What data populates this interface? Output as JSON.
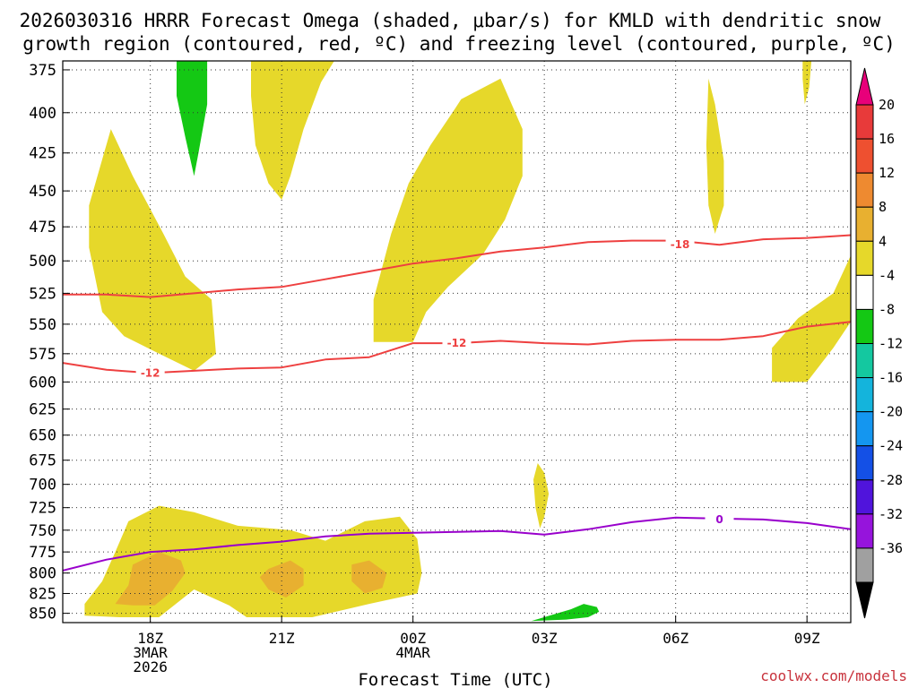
{
  "title_line1": "2026030316 HRRR Forecast Omega (shaded, μbar/s) for KMLD with dendritic snow",
  "title_line2": "growth region (contoured, red, ºC) and freezing level (contoured, purple, ºC)",
  "xlabel": "Forecast Time (UTC)",
  "credit": "coolwx.com/models",
  "colors": {
    "credit": "#c8323c",
    "red_contour": "#ee4040",
    "purple_contour": "#9900cc",
    "ground": "#a0522d"
  },
  "chart_data": {
    "type": "time-height cross section",
    "x_unit": "hours since 2026-03-03 16Z",
    "xlim": [
      0,
      18
    ],
    "ylim_hPa": [
      862,
      370
    ],
    "yticks": [
      375,
      400,
      425,
      450,
      475,
      500,
      525,
      550,
      575,
      600,
      625,
      650,
      675,
      700,
      725,
      750,
      775,
      800,
      825,
      850
    ],
    "xticks": [
      {
        "x": 2,
        "lines": [
          "18Z",
          "3MAR",
          "2026"
        ]
      },
      {
        "x": 5,
        "lines": [
          "21Z"
        ]
      },
      {
        "x": 8,
        "lines": [
          "00Z",
          "4MAR"
        ]
      },
      {
        "x": 11,
        "lines": [
          "03Z"
        ]
      },
      {
        "x": 14,
        "lines": [
          "06Z"
        ]
      },
      {
        "x": 17,
        "lines": [
          "09Z"
        ]
      }
    ],
    "colorbar": {
      "labels": [
        20,
        16,
        12,
        8,
        4,
        -4,
        -8,
        -12,
        -16,
        -20,
        -24,
        -28,
        -32,
        -36
      ],
      "bins": [
        {
          "color": "#e8007a"
        },
        {
          "color": "#e83a3a"
        },
        {
          "color": "#ee5030"
        },
        {
          "color": "#ee8a30"
        },
        {
          "color": "#e8b030"
        },
        {
          "color": "#e6d82a"
        },
        {
          "color": "#ffffff"
        },
        {
          "color": "#14c814"
        },
        {
          "color": "#14c8a0"
        },
        {
          "color": "#14b4dc"
        },
        {
          "color": "#1496f0"
        },
        {
          "color": "#1450e6"
        },
        {
          "color": "#5014dc"
        },
        {
          "color": "#9614dc"
        },
        {
          "color": "#a0a0a0"
        },
        {
          "color": "#000000"
        }
      ]
    },
    "shaded_regions": [
      {
        "level": "4 to 8",
        "color": "#e6d82a",
        "points": [
          [
            1.1,
            410
          ],
          [
            1.6,
            440
          ],
          [
            2.3,
            480
          ],
          [
            2.8,
            512
          ],
          [
            3.4,
            530
          ],
          [
            3.5,
            575
          ],
          [
            3.0,
            590
          ],
          [
            2.2,
            575
          ],
          [
            1.4,
            560
          ],
          [
            0.9,
            540
          ],
          [
            0.6,
            490
          ],
          [
            0.6,
            460
          ]
        ]
      },
      {
        "level": "4 to 8",
        "color": "#e6d82a",
        "points": [
          [
            4.3,
            370
          ],
          [
            6.2,
            370
          ],
          [
            5.9,
            382
          ],
          [
            5.5,
            410
          ],
          [
            5.2,
            440
          ],
          [
            5.0,
            456
          ],
          [
            4.7,
            445
          ],
          [
            4.4,
            420
          ],
          [
            4.3,
            390
          ]
        ]
      },
      {
        "level": "4 to 8",
        "color": "#e6d82a",
        "points": [
          [
            9.1,
            392
          ],
          [
            10.0,
            380
          ],
          [
            10.5,
            410
          ],
          [
            10.5,
            440
          ],
          [
            10.1,
            470
          ],
          [
            9.6,
            495
          ],
          [
            8.8,
            520
          ],
          [
            8.3,
            540
          ],
          [
            8.0,
            565
          ],
          [
            7.1,
            565
          ],
          [
            7.1,
            530
          ],
          [
            7.5,
            480
          ],
          [
            7.9,
            445
          ],
          [
            8.4,
            420
          ],
          [
            8.9,
            400
          ]
        ]
      },
      {
        "level": "4 to 8",
        "color": "#e6d82a",
        "points": [
          [
            14.75,
            380
          ],
          [
            14.9,
            395
          ],
          [
            15.1,
            430
          ],
          [
            15.1,
            460
          ],
          [
            14.9,
            480
          ],
          [
            14.75,
            460
          ],
          [
            14.7,
            420
          ]
        ]
      },
      {
        "level": "4 to 8",
        "color": "#e6d82a",
        "points": [
          [
            16.9,
            370
          ],
          [
            17.1,
            370
          ],
          [
            17.05,
            385
          ],
          [
            16.95,
            395
          ],
          [
            16.9,
            380
          ]
        ]
      },
      {
        "level": "4 to 8",
        "color": "#e6d82a",
        "points": [
          [
            18.0,
            496
          ],
          [
            17.6,
            525
          ],
          [
            16.8,
            545
          ],
          [
            16.2,
            570
          ],
          [
            16.2,
            600
          ],
          [
            17.0,
            600
          ],
          [
            17.6,
            570
          ],
          [
            18.0,
            548
          ]
        ]
      },
      {
        "level": "4 to 8",
        "color": "#e6d82a",
        "points": [
          [
            10.85,
            678
          ],
          [
            11.0,
            688
          ],
          [
            11.1,
            710
          ],
          [
            11.0,
            735
          ],
          [
            10.9,
            748
          ],
          [
            10.8,
            725
          ],
          [
            10.75,
            695
          ]
        ]
      },
      {
        "level": "4 to 8",
        "color": "#e6d82a",
        "points": [
          [
            1.5,
            740
          ],
          [
            2.2,
            723
          ],
          [
            3.0,
            730
          ],
          [
            4.0,
            745
          ],
          [
            5.2,
            750
          ],
          [
            6.0,
            762
          ],
          [
            6.9,
            740
          ],
          [
            7.7,
            735
          ],
          [
            8.1,
            760
          ],
          [
            8.2,
            800
          ],
          [
            8.1,
            825
          ],
          [
            7.0,
            838
          ],
          [
            5.7,
            855
          ],
          [
            4.2,
            855
          ],
          [
            3.8,
            840
          ],
          [
            3.0,
            820
          ],
          [
            2.2,
            855
          ],
          [
            1.3,
            855
          ],
          [
            0.5,
            853
          ],
          [
            0.5,
            838
          ],
          [
            0.9,
            810
          ],
          [
            1.2,
            775
          ]
        ]
      }
    ],
    "orange_regions": [
      {
        "level": "8 to 12",
        "color": "#e8b030",
        "points": [
          [
            1.6,
            790
          ],
          [
            2.2,
            775
          ],
          [
            2.7,
            785
          ],
          [
            2.8,
            800
          ],
          [
            2.5,
            822
          ],
          [
            2.1,
            840
          ],
          [
            1.6,
            840
          ],
          [
            1.2,
            838
          ],
          [
            1.5,
            815
          ]
        ]
      },
      {
        "level": "8 to 12",
        "color": "#e8b030",
        "points": [
          [
            4.7,
            795
          ],
          [
            5.2,
            785
          ],
          [
            5.5,
            795
          ],
          [
            5.5,
            815
          ],
          [
            5.1,
            830
          ],
          [
            4.7,
            820
          ],
          [
            4.5,
            805
          ]
        ]
      },
      {
        "level": "8 to 12",
        "color": "#e8b030",
        "points": [
          [
            6.6,
            790
          ],
          [
            7.0,
            785
          ],
          [
            7.4,
            800
          ],
          [
            7.3,
            818
          ],
          [
            6.9,
            825
          ],
          [
            6.6,
            810
          ]
        ]
      }
    ],
    "green_regions": [
      {
        "level": "-4 to -8",
        "color": "#14c814",
        "points": [
          [
            2.6,
            370
          ],
          [
            3.3,
            370
          ],
          [
            3.3,
            395
          ],
          [
            3.1,
            425
          ],
          [
            3.0,
            440
          ],
          [
            2.8,
            415
          ],
          [
            2.6,
            390
          ]
        ]
      },
      {
        "level": "-4 to -8",
        "color": "#14c814",
        "points": [
          [
            10.7,
            860
          ],
          [
            11.6,
            845
          ],
          [
            11.9,
            838
          ],
          [
            12.2,
            842
          ],
          [
            12.25,
            848
          ],
          [
            12.0,
            855
          ],
          [
            11.5,
            858
          ]
        ]
      }
    ],
    "dendritic_contours": [
      {
        "label": "-12",
        "color": "#ee4040",
        "points": [
          [
            0,
            583
          ],
          [
            1,
            589
          ],
          [
            2,
            592
          ],
          [
            3,
            590
          ],
          [
            4,
            588
          ],
          [
            5,
            587
          ],
          [
            6,
            580
          ],
          [
            7,
            578
          ],
          [
            8,
            566
          ],
          [
            9,
            566
          ],
          [
            10,
            564
          ],
          [
            11,
            566
          ],
          [
            12,
            567
          ],
          [
            13,
            564
          ],
          [
            14,
            563
          ],
          [
            15,
            563
          ],
          [
            16,
            560
          ],
          [
            17,
            552
          ],
          [
            18,
            548
          ]
        ],
        "labels": [
          {
            "x": 2.0,
            "y": 592
          },
          {
            "x": 9.0,
            "y": 566
          }
        ]
      },
      {
        "label": "-18",
        "color": "#ee4040",
        "points": [
          [
            0,
            526
          ],
          [
            1,
            526
          ],
          [
            2,
            528
          ],
          [
            3,
            525
          ],
          [
            4,
            522
          ],
          [
            5,
            520
          ],
          [
            6,
            514
          ],
          [
            7,
            508
          ],
          [
            8,
            502
          ],
          [
            9,
            498
          ],
          [
            10,
            493
          ],
          [
            11,
            490
          ],
          [
            12,
            486
          ],
          [
            13,
            485
          ],
          [
            14,
            485
          ],
          [
            15,
            488
          ],
          [
            16,
            484
          ],
          [
            17,
            483
          ],
          [
            18,
            481
          ]
        ],
        "labels": [
          {
            "x": 14.1,
            "y": 488
          }
        ]
      }
    ],
    "freezing_level": {
      "label": "0",
      "color": "#9900cc",
      "points": [
        [
          0,
          797
        ],
        [
          1,
          784
        ],
        [
          2,
          775
        ],
        [
          3,
          772
        ],
        [
          4,
          767
        ],
        [
          5,
          763
        ],
        [
          6,
          757
        ],
        [
          7,
          754
        ],
        [
          8,
          753
        ],
        [
          9,
          752
        ],
        [
          10,
          751
        ],
        [
          11,
          755
        ],
        [
          12,
          749
        ],
        [
          13,
          741
        ],
        [
          14,
          736
        ],
        [
          15,
          737
        ],
        [
          16,
          738
        ],
        [
          17,
          742
        ],
        [
          18,
          749
        ]
      ],
      "labels": [
        {
          "x": 15.0,
          "y": 738
        }
      ]
    },
    "ground": {
      "color": "#a0522d",
      "points": [
        [
          0,
          862
        ],
        [
          18,
          862
        ]
      ]
    }
  }
}
